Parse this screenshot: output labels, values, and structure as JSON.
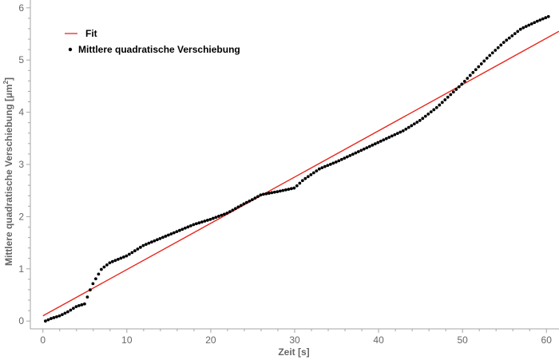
{
  "chart_data": {
    "type": "scatter",
    "title": "",
    "xlabel": "Zeit [s]",
    "ylabel": "Mittlere quadratische Verschiebung [µm",
    "ylabel_superscript": "2",
    "ylabel_suffix": "]",
    "xlim": [
      -1.5,
      61.5
    ],
    "ylim": [
      -0.15,
      6.15
    ],
    "xticks": [
      0,
      10,
      20,
      30,
      40,
      50,
      60
    ],
    "yticks": [
      0,
      1,
      2,
      3,
      4,
      5,
      6
    ],
    "grid": false,
    "legend_position": "top-left",
    "legend": [
      "Fit",
      "Mittlere quadratische Verschiebung"
    ],
    "series": [
      {
        "name": "Fit",
        "kind": "line",
        "color": "#e8251c",
        "x": [
          0,
          61.5
        ],
        "y": [
          0.1,
          5.55
        ]
      },
      {
        "name": "Mittlere quadratische Verschiebung",
        "kind": "scatter",
        "color": "#000000",
        "anchors_x": [
          0.3,
          1,
          2,
          3,
          4,
          5,
          5.5,
          6,
          7,
          8,
          10,
          12,
          15,
          18,
          20,
          22,
          24,
          25,
          26,
          28,
          30,
          31,
          33,
          35,
          37,
          39,
          41,
          43,
          45,
          47,
          49,
          50,
          51,
          53,
          55,
          57,
          59,
          60.5
        ],
        "anchors_y": [
          0.0,
          0.05,
          0.1,
          0.18,
          0.28,
          0.33,
          0.55,
          0.73,
          1.0,
          1.12,
          1.25,
          1.45,
          1.65,
          1.85,
          1.95,
          2.07,
          2.25,
          2.33,
          2.42,
          2.48,
          2.55,
          2.7,
          2.92,
          3.05,
          3.2,
          3.35,
          3.5,
          3.65,
          3.85,
          4.1,
          4.4,
          4.55,
          4.72,
          5.05,
          5.35,
          5.6,
          5.75,
          5.85
        ],
        "step": 0.333
      }
    ]
  }
}
